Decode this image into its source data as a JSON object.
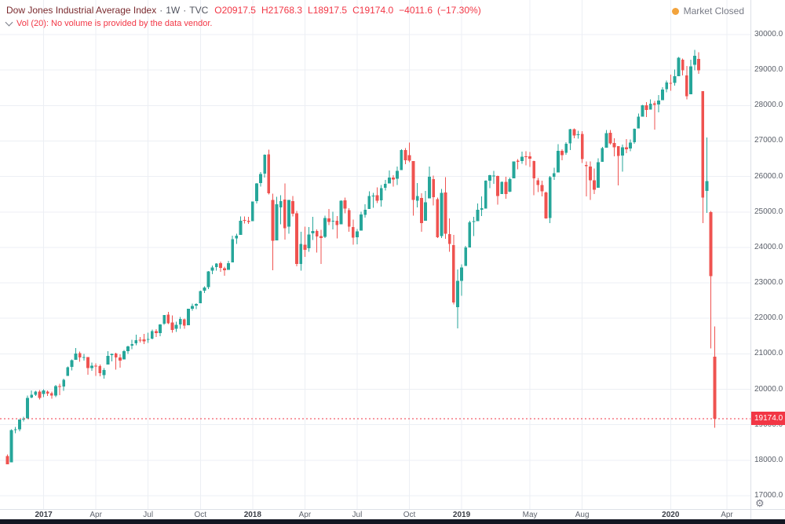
{
  "legend": {
    "title": "Dow Jones Industrial Average Index",
    "separator": "·",
    "interval": "1W",
    "exchange": "TVC",
    "open_label": "O",
    "open": "20917.5",
    "high_label": "H",
    "high": "21768.3",
    "low_label": "L",
    "low": "18917.5",
    "close_label": "C",
    "close": "19174.0",
    "change": "−4011.6",
    "change_pct": "(−17.30%)"
  },
  "indicator_row": {
    "text": "Vol (20): No volume is provided by the data vendor."
  },
  "market_status": {
    "label": "Market Closed"
  },
  "icons": {
    "legend_collapse": "chevron-down",
    "settings": "⚙",
    "status_dot": "●"
  },
  "colors": {
    "up": "#26a69a",
    "down": "#ef5350",
    "accent_red": "#f23645",
    "title_text": "#7a2a2e",
    "legend_red": "#f23645",
    "axis_text": "#5a5f69",
    "grid": "#eceff4",
    "status_dot": "#f2a33c",
    "muted_text": "#787b86",
    "bottom_bar": "#131722"
  },
  "chart_data": {
    "type": "candlestick",
    "title": "Dow Jones Industrial Average Index",
    "exchange": "TVC",
    "interval": "1W",
    "grid": true,
    "legend_position": "top-left",
    "y_axis": {
      "side": "right",
      "min": 17000,
      "max": 30000,
      "step": 1000,
      "tick_labels": [
        "30000.0",
        "29000.0",
        "28000.0",
        "27000.0",
        "26000.0",
        "25000.0",
        "24000.0",
        "23000.0",
        "22000.0",
        "21000.0",
        "20000.0",
        "19000.0",
        "18000.0",
        "17000.0"
      ]
    },
    "x_axis": {
      "ticks": [
        {
          "label": "2017",
          "index": 9,
          "major": true
        },
        {
          "label": "Apr",
          "index": 22,
          "major": false
        },
        {
          "label": "Jul",
          "index": 35,
          "major": false
        },
        {
          "label": "Oct",
          "index": 48,
          "major": false
        },
        {
          "label": "2018",
          "index": 61,
          "major": true
        },
        {
          "label": "Apr",
          "index": 74,
          "major": false
        },
        {
          "label": "Jul",
          "index": 87,
          "major": false
        },
        {
          "label": "Oct",
          "index": 100,
          "major": false
        },
        {
          "label": "2019",
          "index": 113,
          "major": true
        },
        {
          "label": "May",
          "index": 130,
          "major": false
        },
        {
          "label": "Aug",
          "index": 143,
          "major": false
        },
        {
          "label": "2020",
          "index": 165,
          "major": true
        },
        {
          "label": "Apr",
          "index": 179,
          "major": false
        }
      ]
    },
    "last_price": {
      "value": 19174.0,
      "label": "19174.0",
      "direction": "down"
    },
    "last_bar": {
      "open": 20917.5,
      "high": 21768.3,
      "low": 18917.5,
      "close": 19174.0,
      "change": -4011.6,
      "change_percent": -17.3
    },
    "candles_ohlc": [
      [
        18114,
        18161,
        17883,
        17888
      ],
      [
        17937,
        18873,
        17937,
        18847
      ],
      [
        18857,
        18934,
        18756,
        18867
      ],
      [
        18870,
        19152,
        18820,
        19152
      ],
      [
        19149,
        19225,
        19097,
        19170
      ],
      [
        19181,
        19824,
        19181,
        19756
      ],
      [
        19771,
        19966,
        19748,
        19843
      ],
      [
        19845,
        19953,
        19815,
        19933
      ],
      [
        19933,
        19980,
        19718,
        19762
      ],
      [
        19872,
        19999,
        19784,
        19963
      ],
      [
        19931,
        19973,
        19811,
        19885
      ],
      [
        19886,
        19933,
        19732,
        19827
      ],
      [
        19827,
        20125,
        19784,
        20093
      ],
      [
        20094,
        20155,
        19831,
        20071
      ],
      [
        20074,
        20298,
        19960,
        20269
      ],
      [
        20376,
        20639,
        20376,
        20624
      ],
      [
        20635,
        20840,
        20532,
        20821
      ],
      [
        20837,
        21169,
        20837,
        21005
      ],
      [
        21016,
        21060,
        20777,
        20902
      ],
      [
        20907,
        21000,
        20806,
        20914
      ],
      [
        20905,
        20911,
        20412,
        20596
      ],
      [
        20598,
        20757,
        20517,
        20663
      ],
      [
        20665,
        20729,
        20379,
        20656
      ],
      [
        20658,
        20698,
        20369,
        20453
      ],
      [
        20400,
        20600,
        20300,
        20547
      ],
      [
        20699,
        21070,
        20699,
        20940
      ],
      [
        20962,
        21011,
        20784,
        20996
      ],
      [
        21007,
        21032,
        20553,
        20896
      ],
      [
        20900,
        20988,
        20606,
        20804
      ],
      [
        20844,
        21112,
        20844,
        21080
      ],
      [
        21075,
        21225,
        20994,
        21206
      ],
      [
        21232,
        21391,
        21129,
        21271
      ],
      [
        21290,
        21535,
        21244,
        21384
      ],
      [
        21395,
        21475,
        21319,
        21394
      ],
      [
        21408,
        21562,
        21279,
        21349
      ],
      [
        21392,
        21596,
        21313,
        21414
      ],
      [
        21424,
        21681,
        21405,
        21637
      ],
      [
        21642,
        21697,
        21471,
        21580
      ],
      [
        21587,
        21841,
        21496,
        21830
      ],
      [
        21847,
        22093,
        21813,
        22092
      ],
      [
        22100,
        22179,
        21844,
        21858
      ],
      [
        21886,
        22085,
        21600,
        21674
      ],
      [
        21703,
        21900,
        21621,
        21813
      ],
      [
        21831,
        22039,
        21709,
        21987
      ],
      [
        21977,
        21998,
        21709,
        21797
      ],
      [
        21810,
        22275,
        21810,
        22268
      ],
      [
        22271,
        22413,
        22213,
        22350
      ],
      [
        22355,
        22423,
        22256,
        22405
      ],
      [
        22424,
        22777,
        22424,
        22774
      ],
      [
        22780,
        22905,
        22716,
        22872
      ],
      [
        22885,
        23329,
        22829,
        23328
      ],
      [
        23348,
        23485,
        23242,
        23434
      ],
      [
        23442,
        23557,
        23340,
        23539
      ],
      [
        23551,
        23602,
        23310,
        23422
      ],
      [
        23416,
        23458,
        23206,
        23358
      ],
      [
        23368,
        23617,
        23368,
        23558
      ],
      [
        23580,
        24327,
        23580,
        24232
      ],
      [
        24254,
        24382,
        24099,
        24329
      ],
      [
        24350,
        24876,
        24350,
        24754
      ],
      [
        24774,
        24877,
        24672,
        24754
      ],
      [
        24755,
        24863,
        24668,
        24719
      ],
      [
        24741,
        25299,
        24741,
        25296
      ],
      [
        25308,
        25811,
        25233,
        25803
      ],
      [
        25816,
        26128,
        25720,
        26072
      ],
      [
        26080,
        26620,
        25970,
        26617
      ],
      [
        26620,
        26760,
        25490,
        25521
      ],
      [
        25337,
        25520,
        23360,
        24191
      ],
      [
        24200,
        25432,
        24200,
        25219
      ],
      [
        25124,
        25471,
        24649,
        25310
      ],
      [
        25347,
        25800,
        24217,
        24538
      ],
      [
        24590,
        25340,
        24382,
        25336
      ],
      [
        25306,
        25449,
        24869,
        24947
      ],
      [
        24961,
        25024,
        23463,
        23533
      ],
      [
        23538,
        24446,
        23344,
        24103
      ],
      [
        24076,
        24584,
        23738,
        23933
      ],
      [
        23979,
        24571,
        23879,
        24360
      ],
      [
        24398,
        24859,
        24207,
        24463
      ],
      [
        24468,
        24512,
        23849,
        24311
      ],
      [
        24317,
        24499,
        23531,
        24263
      ],
      [
        24297,
        24900,
        24263,
        24831
      ],
      [
        24820,
        25086,
        24629,
        24715
      ],
      [
        24740,
        25006,
        24513,
        24753
      ],
      [
        24747,
        24889,
        24248,
        24635
      ],
      [
        24648,
        25322,
        24648,
        25317
      ],
      [
        25322,
        25402,
        24963,
        25090
      ],
      [
        25055,
        25109,
        24440,
        24581
      ],
      [
        24574,
        24779,
        24077,
        24271
      ],
      [
        24283,
        24519,
        24085,
        24456
      ],
      [
        24474,
        25011,
        24474,
        24924
      ],
      [
        24917,
        25211,
        24838,
        25058
      ],
      [
        25087,
        25587,
        25087,
        25451
      ],
      [
        25448,
        25536,
        25120,
        25463
      ],
      [
        25476,
        25692,
        25253,
        25313
      ],
      [
        25323,
        25758,
        25154,
        25669
      ],
      [
        25677,
        25898,
        25608,
        25790
      ],
      [
        25798,
        26167,
        25798,
        25965
      ],
      [
        25971,
        26031,
        25712,
        25917
      ],
      [
        25933,
        26280,
        25754,
        26155
      ],
      [
        26180,
        26769,
        26180,
        26744
      ],
      [
        26746,
        26798,
        26341,
        26458
      ],
      [
        26598,
        26952,
        26403,
        26447
      ],
      [
        26430,
        26437,
        24900,
        25340
      ],
      [
        25320,
        25817,
        25127,
        25444
      ],
      [
        25399,
        25528,
        24445,
        24688
      ],
      [
        24747,
        25592,
        24747,
        25271
      ],
      [
        25380,
        26278,
        25380,
        25989
      ],
      [
        25927,
        26022,
        25180,
        25413
      ],
      [
        25360,
        25406,
        24268,
        24286
      ],
      [
        24318,
        25646,
        24268,
        25538
      ],
      [
        25548,
        25980,
        24242,
        24389
      ],
      [
        24370,
        24821,
        23881,
        24101
      ],
      [
        24070,
        24350,
        22396,
        22445
      ],
      [
        22317,
        23381,
        21713,
        23062
      ],
      [
        23058,
        23518,
        22638,
        23433
      ],
      [
        23474,
        24038,
        23474,
        23996
      ],
      [
        23996,
        24750,
        23996,
        24706
      ],
      [
        24712,
        24860,
        24323,
        24737
      ],
      [
        24740,
        25240,
        24740,
        25064
      ],
      [
        25062,
        25439,
        24883,
        25106
      ],
      [
        25093,
        25891,
        25093,
        25883
      ],
      [
        25877,
        26052,
        25668,
        26032
      ],
      [
        26019,
        26155,
        25789,
        26026
      ],
      [
        26019,
        26022,
        25208,
        25450
      ],
      [
        25509,
        25860,
        25509,
        25849
      ],
      [
        25846,
        25994,
        25372,
        25502
      ],
      [
        25565,
        25965,
        25565,
        25929
      ],
      [
        25942,
        26391,
        25942,
        26425
      ],
      [
        26440,
        26487,
        26203,
        26412
      ],
      [
        26434,
        26696,
        26352,
        26560
      ],
      [
        26571,
        26708,
        26310,
        26543
      ],
      [
        26563,
        26689,
        26263,
        26505
      ],
      [
        26438,
        26440,
        25469,
        25942
      ],
      [
        25895,
        25958,
        25560,
        25764
      ],
      [
        25755,
        25877,
        25441,
        25586
      ],
      [
        25553,
        25573,
        24809,
        24815
      ],
      [
        24830,
        26010,
        24680,
        25984
      ],
      [
        25992,
        26249,
        25900,
        26090
      ],
      [
        26111,
        26907,
        26111,
        26719
      ],
      [
        26724,
        26769,
        26462,
        26600
      ],
      [
        26662,
        26966,
        26616,
        26922
      ],
      [
        26933,
        27340,
        26744,
        27332
      ],
      [
        27335,
        27359,
        27082,
        27154
      ],
      [
        27160,
        27284,
        27071,
        27192
      ],
      [
        27201,
        27281,
        26379,
        26485
      ],
      [
        26319,
        26426,
        25440,
        26287
      ],
      [
        26283,
        26427,
        25339,
        25886
      ],
      [
        25893,
        26222,
        25508,
        25628
      ],
      [
        25680,
        26514,
        25680,
        26403
      ],
      [
        26409,
        26836,
        26409,
        26797
      ],
      [
        26812,
        27306,
        26812,
        27220
      ],
      [
        27230,
        27307,
        26902,
        26935
      ],
      [
        26946,
        27079,
        26562,
        26820
      ],
      [
        26852,
        26856,
        25743,
        26574
      ],
      [
        26590,
        26899,
        26139,
        26817
      ],
      [
        26822,
        27057,
        26654,
        26770
      ],
      [
        26788,
        27046,
        26714,
        26958
      ],
      [
        26967,
        27350,
        26918,
        27347
      ],
      [
        27353,
        27775,
        27353,
        27681
      ],
      [
        27690,
        28014,
        27690,
        28005
      ],
      [
        28010,
        28090,
        27675,
        27875
      ],
      [
        27886,
        28175,
        27886,
        28051
      ],
      [
        28060,
        28125,
        27325,
        28015
      ],
      [
        28030,
        28290,
        27804,
        28135
      ],
      [
        28148,
        28518,
        28148,
        28455
      ],
      [
        28465,
        28702,
        28376,
        28645
      ],
      [
        28639,
        28873,
        28418,
        28635
      ],
      [
        28640,
        29009,
        28565,
        28824
      ],
      [
        28829,
        29373,
        28829,
        29348
      ],
      [
        29290,
        29320,
        28843,
        28990
      ],
      [
        28843,
        29109,
        28169,
        28256
      ],
      [
        28320,
        29288,
        28320,
        29103
      ],
      [
        29143,
        29568,
        28995,
        29398
      ],
      [
        29310,
        29500,
        28892,
        28992
      ],
      [
        28402,
        28408,
        24681,
        25409
      ],
      [
        25591,
        27102,
        24976,
        25865
      ],
      [
        24992,
        25028,
        21154,
        23186
      ],
      [
        20917.5,
        21768.3,
        18917.5,
        19174.0
      ]
    ]
  }
}
